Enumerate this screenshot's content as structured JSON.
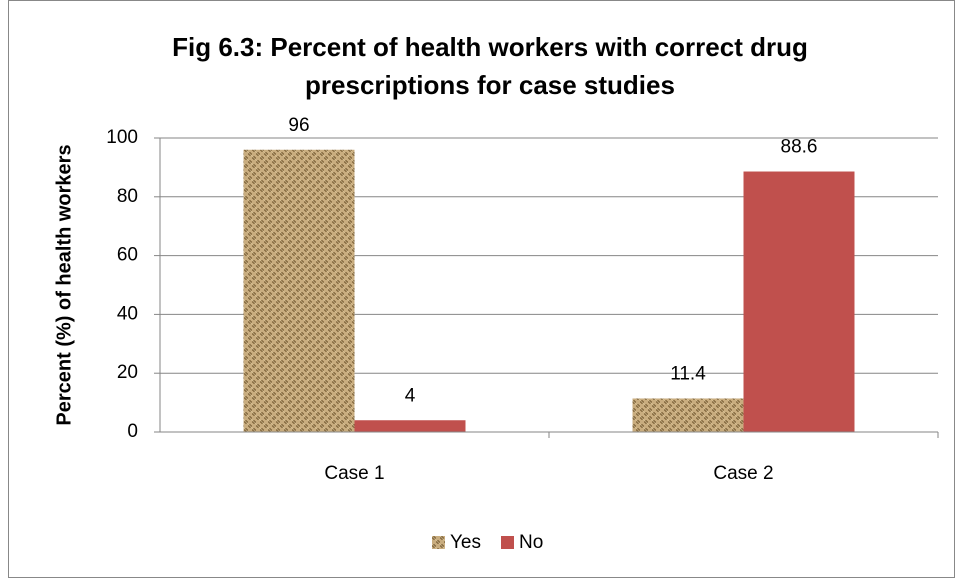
{
  "chart_data": {
    "type": "bar",
    "title": "Fig 6.3: Percent of health workers with correct drug prescriptions for case studies",
    "y_label": "Percent (%) of health workers",
    "categories": [
      "Case 1",
      "Case 2"
    ],
    "series": [
      {
        "name": "Yes",
        "color": "#c4a674",
        "values": [
          96,
          11.4
        ]
      },
      {
        "name": "No",
        "color": "#c0504d",
        "values": [
          4,
          88.6
        ]
      }
    ],
    "ylim": [
      0,
      100
    ],
    "yticks": [
      0,
      20,
      40,
      60,
      80,
      100
    ],
    "grid": true,
    "legend": "bottom"
  }
}
